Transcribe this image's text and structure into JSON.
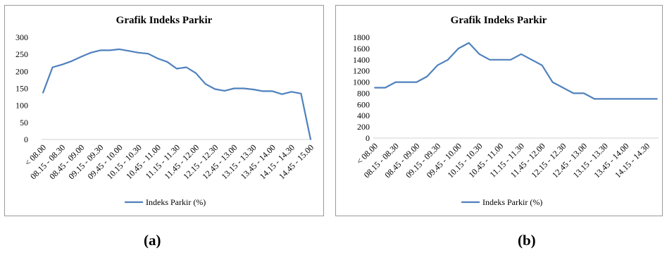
{
  "captions": [
    "(a)",
    "(b)"
  ],
  "line_color": "#4f81bd",
  "chart_data": [
    {
      "type": "line",
      "title": "Grafik Indeks Parkir",
      "xlabel": "",
      "ylabel": "",
      "ylim": [
        0,
        300
      ],
      "yticks": [
        0,
        50,
        100,
        150,
        200,
        250,
        300
      ],
      "x_tick_labels": [
        "< 08.00",
        "08.15 - 08.30",
        "08.45 - 09.00",
        "09.15 - 09.30",
        "09.45 - 10.00",
        "10.15 - 10.30",
        "10.45 - 11.00",
        "11.15 - 11.30",
        "11.45 - 12.00",
        "12.15 - 12.30",
        "12.45 - 13.00",
        "13.15 - 13.30",
        "13.45 - 14.00",
        "14.15 - 14.30",
        "14.45 - 15.00"
      ],
      "points_per_label": 2,
      "series": [
        {
          "name": "Indeks Parkir (%)",
          "values": [
            137,
            212,
            220,
            230,
            243,
            255,
            262,
            262,
            265,
            260,
            255,
            252,
            238,
            228,
            208,
            212,
            195,
            163,
            148,
            143,
            150,
            150,
            147,
            142,
            142,
            133,
            140,
            135,
            0
          ]
        }
      ],
      "grid": false,
      "legend_position": "bottom"
    },
    {
      "type": "line",
      "title": "Grafik Indeks Parkir",
      "xlabel": "",
      "ylabel": "",
      "ylim": [
        0,
        1800
      ],
      "yticks": [
        0,
        200,
        400,
        600,
        800,
        1000,
        1200,
        1400,
        1600,
        1800
      ],
      "x_tick_labels": [
        "< 08.00",
        "08.15 - 08.30",
        "08.45 - 09.00",
        "09.15 - 09.30",
        "09.45 - 10.00",
        "10.15 - 10.30",
        "10.45 - 11.00",
        "11.15 - 11.30",
        "11.45 - 12.00",
        "12.15 - 12.30",
        "12.45 - 13.00",
        "13.15 - 13.30",
        "13.45 - 14.00",
        "14.15 - 14.30"
      ],
      "points_per_label": 2,
      "series": [
        {
          "name": "Indeks Parkir (%)",
          "values": [
            900,
            900,
            1000,
            1000,
            1000,
            1100,
            1300,
            1400,
            1600,
            1700,
            1500,
            1400,
            1400,
            1400,
            1500,
            1400,
            1300,
            1000,
            900,
            800,
            800,
            700,
            700,
            700,
            700,
            700,
            700,
            700
          ]
        }
      ],
      "grid": false,
      "legend_position": "bottom"
    }
  ]
}
